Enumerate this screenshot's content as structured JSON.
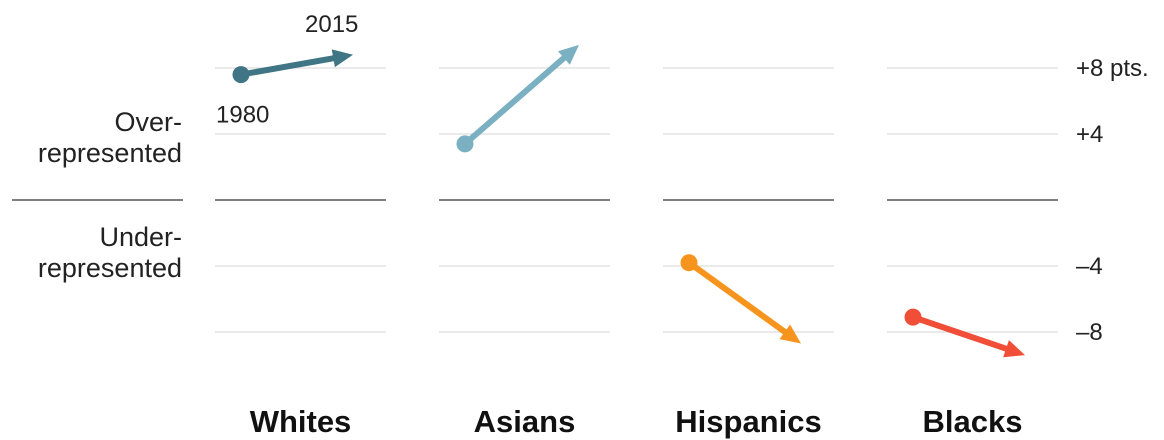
{
  "side_labels": {
    "over": [
      "Over-",
      "represented"
    ],
    "under": [
      "Under-",
      "represented"
    ]
  },
  "chart_data": {
    "type": "slope",
    "y_unit": "pts.",
    "ylim": [
      -10,
      10
    ],
    "y_ticks": [
      {
        "value": 8,
        "label": "+8 pts."
      },
      {
        "value": 4,
        "label": "+4"
      },
      {
        "value": -4,
        "label": "–4"
      },
      {
        "value": -8,
        "label": "–8"
      }
    ],
    "start_year": "1980",
    "end_year": "2015",
    "series": [
      {
        "name": "Whites",
        "start": 7.6,
        "end": 8.8,
        "color": "#3f7585"
      },
      {
        "name": "Asians",
        "start": 3.4,
        "end": 9.4,
        "color": "#7ab0c1"
      },
      {
        "name": "Hispanics",
        "start": -3.8,
        "end": -8.7,
        "color": "#f7941d"
      },
      {
        "name": "Blacks",
        "start": -7.1,
        "end": -9.4,
        "color": "#f04e37"
      }
    ],
    "zero_line": true,
    "grid": true
  }
}
